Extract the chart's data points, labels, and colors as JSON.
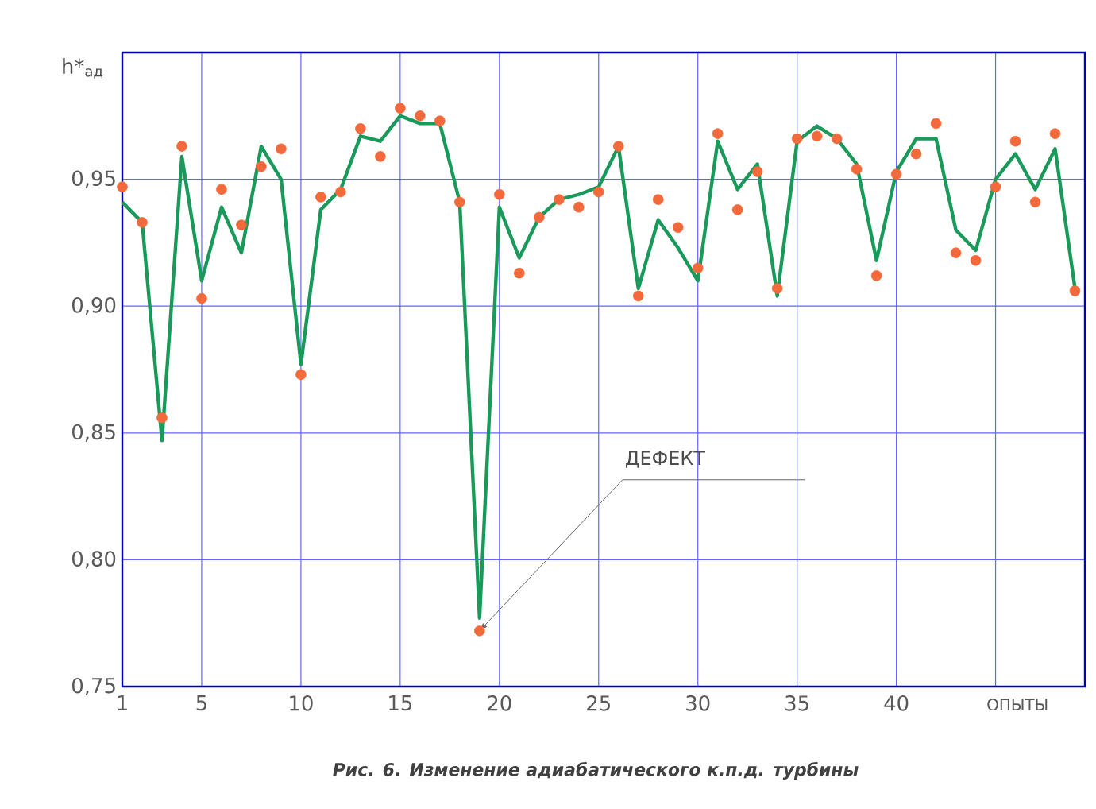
{
  "chart_data": {
    "type": "line",
    "ylabel": "h*$_{ад}$",
    "xlabel": "ОПЫТЫ",
    "x": [
      1,
      2,
      3,
      4,
      5,
      6,
      7,
      8,
      9,
      10,
      11,
      12,
      13,
      14,
      15,
      16,
      17,
      18,
      19,
      20,
      21,
      22,
      23,
      24,
      25,
      26,
      27,
      28,
      29,
      30,
      31,
      32,
      33,
      34,
      35,
      36,
      37,
      38,
      39,
      40,
      41,
      42,
      43,
      44,
      45,
      46,
      47,
      48,
      49
    ],
    "series": [
      {
        "color": "#1a9a5a",
        "marker": "none",
        "values": [
          0.941,
          0.933,
          0.847,
          0.959,
          0.91,
          0.939,
          0.921,
          0.963,
          0.95,
          0.877,
          0.938,
          0.946,
          0.967,
          0.965,
          0.975,
          0.972,
          0.972,
          0.941,
          0.777,
          0.939,
          0.919,
          0.935,
          0.942,
          0.944,
          0.947,
          0.963,
          0.907,
          0.934,
          0.923,
          0.91,
          0.965,
          0.946,
          0.956,
          0.904,
          0.965,
          0.971,
          0.966,
          0.956,
          0.918,
          0.953,
          0.966,
          0.966,
          0.93,
          0.922,
          0.95,
          0.96,
          0.946,
          0.962,
          0.907
        ]
      },
      {
        "type": "scatter",
        "color": "#f26a3c",
        "marker": "circle",
        "values": [
          0.947,
          0.933,
          0.856,
          0.963,
          0.903,
          0.946,
          0.932,
          0.955,
          0.962,
          0.873,
          0.943,
          0.945,
          0.97,
          0.959,
          0.978,
          0.975,
          0.973,
          0.941,
          0.772,
          0.944,
          0.913,
          0.935,
          0.942,
          0.939,
          0.945,
          0.963,
          0.904,
          0.942,
          0.931,
          0.915,
          0.968,
          0.938,
          0.953,
          0.907,
          0.966,
          0.967,
          0.966,
          0.954,
          0.912,
          0.952,
          0.96,
          0.972,
          0.921,
          0.918,
          0.947,
          0.965,
          0.941,
          0.968,
          0.906
        ]
      }
    ],
    "xlim": [
      1,
      49.5
    ],
    "ylim": [
      0.75,
      1.0
    ],
    "xticks": [
      1,
      5,
      10,
      15,
      20,
      25,
      30,
      35,
      40,
      {
        "value": 45,
        "label": null
      }
    ],
    "yticks": [
      {
        "value": 0.75,
        "label": "0,75"
      },
      {
        "value": 0.8,
        "label": "0,80"
      },
      {
        "value": 0.85,
        "label": "0,85"
      },
      {
        "value": 0.9,
        "label": "0,90"
      },
      {
        "value": 0.95,
        "label": "0,95"
      }
    ],
    "grid": true,
    "annotations": [
      {
        "text": "ДЕФЕКТ",
        "x": 19,
        "y": 0.772
      },
      "*Рис. 6. Изменение адиабатического к.п.д.  турбины*"
    ]
  }
}
